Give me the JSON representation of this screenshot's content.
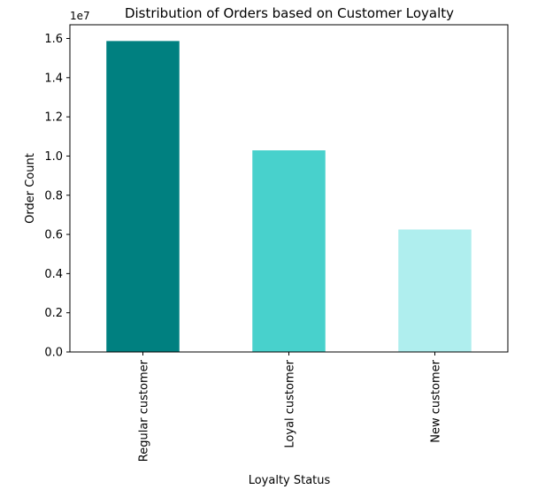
{
  "chart_data": {
    "type": "bar",
    "title": "Distribution of Orders based on Customer Loyalty",
    "xlabel": "Loyalty Status",
    "ylabel": "Order Count",
    "y_scale_note": "1e7",
    "categories": [
      "Regular customer",
      "Loyal customer",
      "New customer"
    ],
    "values": [
      15870000,
      10290000,
      6250000
    ],
    "colors": [
      "#008080",
      "#48d1cc",
      "#afeeee"
    ],
    "ylim": [
      0,
      16700000
    ],
    "y_ticks": [
      {
        "value": 0,
        "label": "0.0"
      },
      {
        "value": 2000000,
        "label": "0.2"
      },
      {
        "value": 4000000,
        "label": "0.4"
      },
      {
        "value": 6000000,
        "label": "0.6"
      },
      {
        "value": 8000000,
        "label": "0.8"
      },
      {
        "value": 10000000,
        "label": "1.0"
      },
      {
        "value": 12000000,
        "label": "1.2"
      },
      {
        "value": 14000000,
        "label": "1.4"
      },
      {
        "value": 16000000,
        "label": "1.6"
      }
    ],
    "grid": false,
    "legend": "none"
  }
}
